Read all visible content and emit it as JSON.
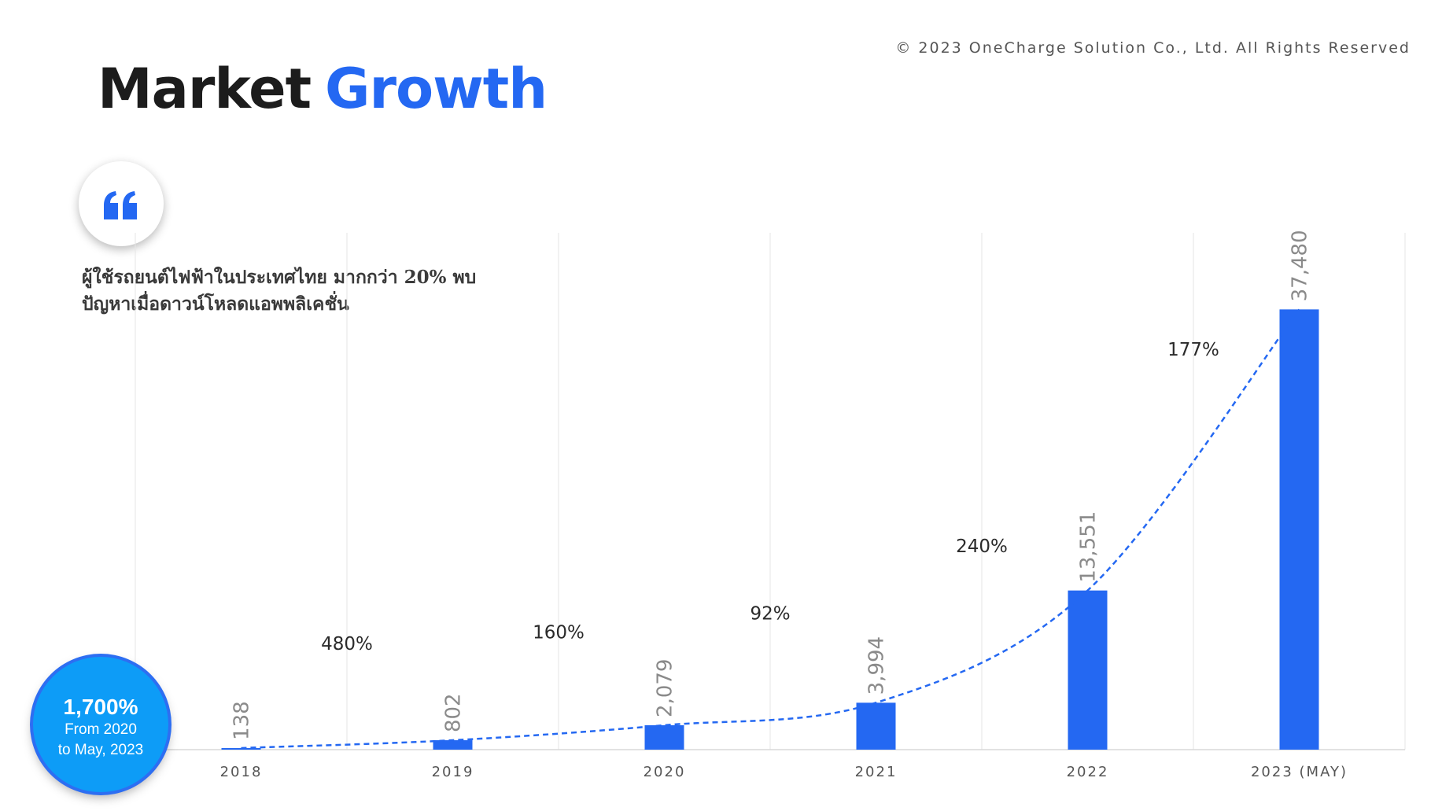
{
  "copyright": "© 2023 OneCharge Solution Co., Ltd. All Rights Reserved",
  "title": {
    "word1": "Market",
    "word2": "Growth"
  },
  "quote": {
    "icon": "quote-icon",
    "line1": "ผู้ใช้รถยนต์ไฟฟ้าในประเทศไทย มากกว่า 20% พบ",
    "line2": "ปัญหาเมื่อดาวน์โหลดแอพพลิเคชั่น"
  },
  "badge": {
    "value": "1,700%",
    "line1": "From 2020",
    "line2": "to May, 2023"
  },
  "colors": {
    "bar": "#2468f2",
    "trend": "#2468f2",
    "grid": "#e6e6e6",
    "badge": "#0d9cf7"
  },
  "chart_data": {
    "type": "bar",
    "categories": [
      "2018",
      "2019",
      "2020",
      "2021",
      "2022",
      "2023 (MAY)"
    ],
    "values": [
      138,
      802,
      2079,
      3994,
      13551,
      37480
    ],
    "value_labels": [
      "138",
      "802",
      "2,079",
      "3,994",
      "13,551",
      "37,480"
    ],
    "growth_labels": [
      "480%",
      "160%",
      "92%",
      "240%",
      "177%"
    ],
    "trendline": "dashed",
    "ylim": [
      0,
      44000
    ],
    "grid": true
  }
}
